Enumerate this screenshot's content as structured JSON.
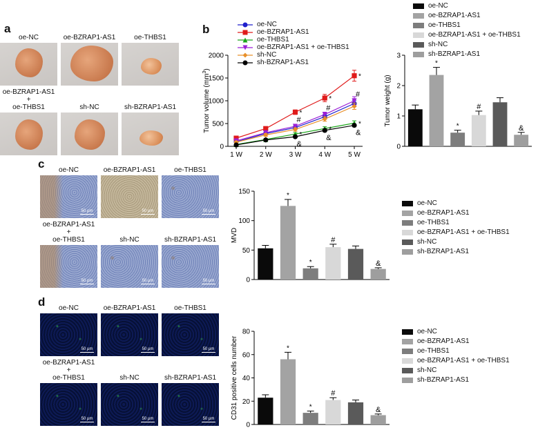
{
  "panels": {
    "a": {
      "label": "a",
      "images": [
        {
          "caption": "oe-NC"
        },
        {
          "caption": "oe-BZRAP1-AS1"
        },
        {
          "caption": "oe-THBS1"
        },
        {
          "caption": "oe-BZRAP1-AS1\n+\noe-THBS1"
        },
        {
          "caption": "sh-NC"
        },
        {
          "caption": "sh-BZRAP1-AS1"
        }
      ]
    },
    "b": {
      "label": "b"
    },
    "c": {
      "label": "c",
      "scale": "50 μm",
      "images": [
        {
          "caption": "oe-NC"
        },
        {
          "caption": "oe-BZRAP1-AS1"
        },
        {
          "caption": "oe-THBS1"
        },
        {
          "caption": "oe-BZRAP1-AS1\n+\noe-THBS1"
        },
        {
          "caption": "sh-NC"
        },
        {
          "caption": "sh-BZRAP1-AS1"
        }
      ]
    },
    "d": {
      "label": "d",
      "scale": "50 μm",
      "images": [
        {
          "caption": "oe-NC"
        },
        {
          "caption": "oe-BZRAP1-AS1"
        },
        {
          "caption": "oe-THBS1"
        },
        {
          "caption": "oe-BZRAP1-AS1\n+\noe-THBS1"
        },
        {
          "caption": "sh-NC"
        },
        {
          "caption": "sh-BZRAP1-AS1"
        }
      ]
    }
  },
  "groups": [
    "oe-NC",
    "oe-BZRAP1-AS1",
    "oe-THBS1",
    "oe-BZRAP1-AS1 + oe-THBS1",
    "sh-NC",
    "sh-BZRAP1-AS1"
  ],
  "bar_colors": [
    "#0a0a0a",
    "#a3a3a3",
    "#7d7d7d",
    "#d8d8d8",
    "#5a5a5a",
    "#9e9e9e"
  ],
  "chart_data": [
    {
      "id": "tumor-volume",
      "type": "line",
      "title": "",
      "xlabel": "",
      "ylabel": "Tumor volume (mm3)",
      "categories": [
        "1 W",
        "2 W",
        "3 W",
        "4 W",
        "5 W"
      ],
      "ylim": [
        0,
        2000
      ],
      "yticks": [
        0,
        500,
        1000,
        1500,
        2000
      ],
      "legend_position": "top",
      "series": [
        {
          "name": "oe-NC",
          "color": "#1f1fcc",
          "marker": "circle",
          "values": [
            100,
            280,
            410,
            650,
            940
          ],
          "errors": [
            20,
            30,
            40,
            50,
            70
          ]
        },
        {
          "name": "oe-BZRAP1-AS1",
          "color": "#e01b1b",
          "marker": "square",
          "values": [
            180,
            390,
            750,
            1060,
            1550
          ],
          "errors": [
            20,
            30,
            50,
            80,
            120
          ],
          "annotations": [
            "",
            "",
            "*",
            "*",
            "*"
          ]
        },
        {
          "name": "oe-THBS1",
          "color": "#1aa51a",
          "marker": "triangle-up",
          "values": [
            40,
            150,
            270,
            390,
            510
          ],
          "errors": [
            10,
            20,
            30,
            40,
            50
          ],
          "annotations": [
            "",
            "",
            "*",
            "*",
            "*"
          ]
        },
        {
          "name": "oe-BZRAP1-AS1 + oe-THBS1",
          "color": "#9b1fd6",
          "marker": "triangle-down",
          "values": [
            120,
            300,
            440,
            700,
            1000
          ],
          "errors": [
            20,
            30,
            40,
            50,
            90
          ],
          "annotations": [
            "",
            "",
            "#",
            "#",
            "#"
          ]
        },
        {
          "name": "sh-NC",
          "color": "#e8902a",
          "marker": "diamond",
          "values": [
            90,
            250,
            370,
            600,
            880
          ],
          "errors": [
            20,
            30,
            40,
            50,
            70
          ]
        },
        {
          "name": "sh-BZRAP1-AS1",
          "color": "#000000",
          "marker": "circle",
          "values": [
            30,
            140,
            210,
            350,
            460
          ],
          "errors": [
            10,
            15,
            20,
            30,
            30
          ],
          "annotations": [
            "",
            "",
            "&",
            "&",
            "&"
          ]
        }
      ]
    },
    {
      "id": "tumor-weight",
      "type": "bar",
      "ylabel": "Tumor weight (g)",
      "categories": [
        "oe-NC",
        "oe-BZRAP1-AS1",
        "oe-THBS1",
        "oe-BZRAP1-AS1 + oe-THBS1",
        "sh-NC",
        "sh-BZRAP1-AS1"
      ],
      "values": [
        1.22,
        2.35,
        0.45,
        1.03,
        1.45,
        0.38
      ],
      "errors": [
        0.14,
        0.25,
        0.08,
        0.13,
        0.15,
        0.08
      ],
      "annotations": [
        "",
        "*",
        "*",
        "#",
        "",
        "&"
      ],
      "ylim": [
        0,
        3
      ],
      "yticks": [
        0,
        1,
        2,
        3
      ],
      "legend_position": "top"
    },
    {
      "id": "mvd",
      "type": "bar",
      "ylabel": "MVD",
      "categories": [
        "oe-NC",
        "oe-BZRAP1-AS1",
        "oe-THBS1",
        "oe-BZRAP1-AS1 + oe-THBS1",
        "sh-NC",
        "sh-BZRAP1-AS1"
      ],
      "values": [
        53,
        125,
        19,
        55,
        52,
        18
      ],
      "errors": [
        5,
        11,
        3,
        5,
        5,
        2
      ],
      "annotations": [
        "",
        "*",
        "*",
        "#",
        "",
        "&"
      ],
      "ylim": [
        0,
        150
      ],
      "yticks": [
        0,
        50,
        100,
        150
      ],
      "legend_position": "right"
    },
    {
      "id": "cd31",
      "type": "bar",
      "ylabel": "CD31 positive cells number",
      "categories": [
        "oe-NC",
        "oe-BZRAP1-AS1",
        "oe-THBS1",
        "oe-BZRAP1-AS1 + oe-THBS1",
        "sh-NC",
        "sh-BZRAP1-AS1"
      ],
      "values": [
        23,
        56,
        10,
        21,
        19,
        8
      ],
      "errors": [
        2.5,
        6,
        1.5,
        2,
        2,
        1
      ],
      "annotations": [
        "",
        "*",
        "*",
        "#",
        "",
        "&"
      ],
      "ylim": [
        0,
        80
      ],
      "yticks": [
        0,
        20,
        40,
        60,
        80
      ],
      "legend_position": "right"
    }
  ]
}
